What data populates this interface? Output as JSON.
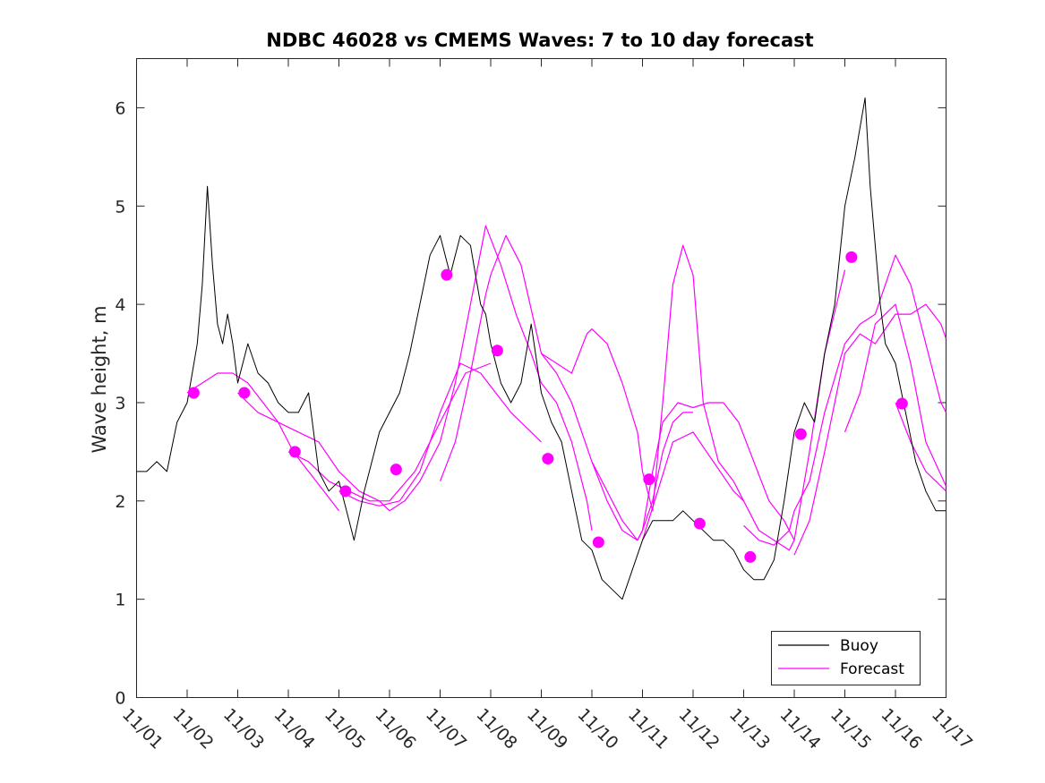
{
  "chart_data": {
    "type": "line",
    "title": "NDBC 46028 vs CMEMS Waves: 7 to 10 day forecast",
    "xlabel": "",
    "ylabel": "Wave height, m",
    "xlim": [
      0,
      16
    ],
    "ylim": [
      0,
      6.5
    ],
    "x_tick_values": [
      0,
      1,
      2,
      3,
      4,
      5,
      6,
      7,
      8,
      9,
      10,
      11,
      12,
      13,
      14,
      15,
      16
    ],
    "x_tick_labels": [
      "11/01",
      "11/02",
      "11/03",
      "11/04",
      "11/05",
      "11/06",
      "11/07",
      "11/08",
      "11/09",
      "11/10",
      "11/11",
      "11/12",
      "11/13",
      "11/14",
      "11/15",
      "11/16",
      "11/17"
    ],
    "y_ticks": [
      0,
      1,
      2,
      3,
      4,
      5,
      6
    ],
    "y_tick_labels": [
      "0",
      "1",
      "2",
      "3",
      "4",
      "5",
      "6"
    ],
    "grid": false,
    "legend_position": "bottom-right",
    "colors": {
      "buoy": "#000000",
      "forecast": "#ff00ff",
      "axis": "#262626"
    },
    "series": [
      {
        "name": "Buoy",
        "kind": "line",
        "x": [
          0,
          0.2,
          0.4,
          0.6,
          0.8,
          1.0,
          1.1,
          1.2,
          1.3,
          1.4,
          1.5,
          1.6,
          1.7,
          1.8,
          1.9,
          2.0,
          2.2,
          2.4,
          2.6,
          2.8,
          3.0,
          3.2,
          3.4,
          3.6,
          3.8,
          4.0,
          4.2,
          4.3,
          4.5,
          4.7,
          4.8,
          5.0,
          5.2,
          5.4,
          5.6,
          5.8,
          6.0,
          6.2,
          6.4,
          6.6,
          6.8,
          6.9,
          7.0,
          7.2,
          7.4,
          7.6,
          7.8,
          8.0,
          8.2,
          8.4,
          8.6,
          8.8,
          9.0,
          9.2,
          9.4,
          9.6,
          9.8,
          10.0,
          10.2,
          10.4,
          10.6,
          10.8,
          11.0,
          11.2,
          11.4,
          11.6,
          11.8,
          12.0,
          12.2,
          12.4,
          12.6,
          12.8,
          13.0,
          13.2,
          13.4,
          13.6,
          13.8,
          14.0,
          14.2,
          14.4,
          14.5,
          14.6,
          14.7,
          14.8,
          14.9,
          15.0,
          15.2,
          15.4,
          15.6,
          15.8,
          16.0
        ],
        "y": [
          2.3,
          2.3,
          2.4,
          2.3,
          2.8,
          3.0,
          3.3,
          3.6,
          4.2,
          5.2,
          4.4,
          3.8,
          3.6,
          3.9,
          3.6,
          3.2,
          3.6,
          3.3,
          3.2,
          3.0,
          2.9,
          2.9,
          3.1,
          2.3,
          2.1,
          2.2,
          1.8,
          1.6,
          2.1,
          2.5,
          2.7,
          2.9,
          3.1,
          3.5,
          4.0,
          4.5,
          4.7,
          4.3,
          4.7,
          4.6,
          4.0,
          3.9,
          3.6,
          3.2,
          3.0,
          3.2,
          3.8,
          3.1,
          2.8,
          2.6,
          2.1,
          1.6,
          1.5,
          1.2,
          1.1,
          1.0,
          1.3,
          1.6,
          1.8,
          1.8,
          1.8,
          1.9,
          1.8,
          1.7,
          1.6,
          1.6,
          1.5,
          1.3,
          1.2,
          1.2,
          1.4,
          2.0,
          2.7,
          3.0,
          2.8,
          3.5,
          4.0,
          5.0,
          5.5,
          6.1,
          5.2,
          4.6,
          4.0,
          3.6,
          3.5,
          3.4,
          2.9,
          2.4,
          2.1,
          1.9,
          1.9
        ]
      },
      {
        "name": "Forecast",
        "kind": "line",
        "x": [
          1.0,
          1.3,
          1.6,
          1.9,
          2.2,
          2.5,
          2.8,
          3.1,
          3.4,
          3.7,
          4.0
        ],
        "y": [
          3.1,
          3.2,
          3.3,
          3.3,
          3.2,
          3.0,
          2.8,
          2.5,
          2.3,
          2.1,
          1.9
        ]
      },
      {
        "name": "Forecast",
        "kind": "line",
        "x": [
          2.0,
          2.4,
          2.8,
          3.2,
          3.6,
          4.0,
          4.4,
          4.8,
          5.0
        ],
        "y": [
          3.1,
          2.9,
          2.8,
          2.7,
          2.6,
          2.3,
          2.1,
          2.0,
          1.9
        ]
      },
      {
        "name": "Forecast",
        "kind": "line",
        "x": [
          3.0,
          3.4,
          3.8,
          4.2,
          4.6,
          5.0,
          5.5,
          6.0,
          6.5,
          7.0
        ],
        "y": [
          2.5,
          2.4,
          2.2,
          2.1,
          2.0,
          2.0,
          2.3,
          2.8,
          3.3,
          3.4
        ]
      },
      {
        "name": "Forecast",
        "kind": "line",
        "x": [
          4.0,
          4.4,
          4.8,
          5.2,
          5.6,
          6.0,
          6.4,
          6.8,
          7.1,
          7.4,
          7.8,
          8.0
        ],
        "y": [
          2.1,
          2.0,
          1.95,
          2.0,
          2.3,
          2.9,
          3.4,
          3.3,
          3.1,
          2.9,
          2.7,
          2.6
        ]
      },
      {
        "name": "Forecast",
        "kind": "line",
        "x": [
          5.0,
          5.3,
          5.6,
          6.0,
          6.3,
          6.6,
          6.9,
          7.2,
          7.5,
          7.8,
          8.0,
          8.3,
          8.6,
          8.9,
          9.0
        ],
        "y": [
          1.9,
          2.0,
          2.2,
          2.6,
          3.2,
          4.0,
          4.8,
          4.4,
          3.9,
          3.5,
          3.2,
          3.0,
          2.6,
          2.0,
          1.7
        ]
      },
      {
        "name": "Forecast",
        "kind": "line",
        "x": [
          6.0,
          6.3,
          6.6,
          6.9,
          7.0,
          7.3,
          7.6,
          8.0,
          8.3,
          8.6,
          9.0,
          9.3,
          9.6,
          9.9,
          10.0,
          10.2,
          10.4,
          10.6,
          10.8,
          11.0
        ],
        "y": [
          2.2,
          2.6,
          3.3,
          4.1,
          4.3,
          4.7,
          4.4,
          3.5,
          3.3,
          3.0,
          2.4,
          2.0,
          1.7,
          1.6,
          1.7,
          2.0,
          2.5,
          2.8,
          2.9,
          2.9
        ]
      },
      {
        "name": "Forecast",
        "kind": "line",
        "x": [
          8.0,
          8.3,
          8.6,
          8.9,
          9.0,
          9.3,
          9.6,
          9.9,
          10.0,
          10.2,
          10.4,
          10.6,
          10.8,
          11.0,
          11.2,
          11.5,
          11.8,
          12.0
        ],
        "y": [
          3.5,
          3.4,
          3.3,
          3.7,
          3.75,
          3.6,
          3.2,
          2.7,
          2.3,
          1.9,
          3.0,
          4.2,
          4.6,
          4.3,
          3.0,
          2.4,
          2.2,
          2.0
        ]
      },
      {
        "name": "Forecast",
        "kind": "line",
        "x": [
          9.0,
          9.3,
          9.6,
          9.9,
          10.0,
          10.2,
          10.4,
          10.7,
          11.0,
          11.3,
          11.6,
          11.9,
          12.2,
          12.5,
          12.8,
          13.0
        ],
        "y": [
          2.4,
          2.1,
          1.8,
          1.6,
          1.7,
          2.3,
          2.8,
          3.0,
          2.95,
          3.0,
          3.0,
          2.8,
          2.4,
          2.0,
          1.8,
          1.6
        ]
      },
      {
        "name": "Forecast",
        "kind": "line",
        "x": [
          10.0,
          10.3,
          10.6,
          11.0,
          11.4,
          11.8,
          12.0,
          12.3,
          12.6,
          12.9,
          13.0,
          13.3,
          13.6,
          14.0
        ],
        "y": [
          1.6,
          2.1,
          2.6,
          2.7,
          2.4,
          2.1,
          2.0,
          1.7,
          1.6,
          1.5,
          1.6,
          2.5,
          3.5,
          4.35
        ]
      },
      {
        "name": "Forecast",
        "kind": "line",
        "x": [
          12.0,
          12.3,
          12.6,
          12.9,
          13.0,
          13.3,
          13.6,
          14.0,
          14.3,
          14.6,
          15.0,
          15.3,
          15.6,
          15.9,
          16.0
        ],
        "y": [
          1.75,
          1.6,
          1.55,
          1.7,
          1.9,
          2.2,
          2.9,
          3.6,
          3.8,
          3.9,
          4.5,
          4.2,
          3.6,
          3.0,
          2.9
        ]
      },
      {
        "name": "Forecast",
        "kind": "line",
        "x": [
          13.0,
          13.3,
          13.6,
          14.0,
          14.3,
          14.6,
          15.0,
          15.3,
          15.6,
          15.9,
          16.0
        ],
        "y": [
          1.45,
          1.8,
          2.5,
          3.5,
          3.7,
          3.6,
          3.9,
          3.9,
          4.0,
          3.8,
          3.65
        ]
      },
      {
        "name": "Forecast",
        "kind": "line",
        "x": [
          14.0,
          14.3,
          14.6,
          15.0,
          15.3,
          15.6,
          16.0
        ],
        "y": [
          2.7,
          3.1,
          3.8,
          4.0,
          3.4,
          2.6,
          2.15
        ]
      },
      {
        "name": "Forecast",
        "kind": "line",
        "x": [
          15.0,
          15.3,
          15.6,
          16.0
        ],
        "y": [
          3.0,
          2.6,
          2.3,
          2.1
        ]
      },
      {
        "name": "Forecast",
        "kind": "markers",
        "x": [
          1.13,
          2.13,
          3.13,
          4.13,
          5.13,
          6.13,
          7.13,
          8.13,
          9.13,
          10.13,
          11.13,
          12.13,
          13.13,
          14.13,
          15.13
        ],
        "y": [
          3.1,
          3.1,
          2.5,
          2.1,
          2.32,
          4.3,
          3.53,
          2.43,
          1.58,
          2.22,
          1.77,
          1.43,
          2.68,
          4.48,
          2.99
        ]
      }
    ],
    "legend": [
      {
        "label": "Buoy",
        "color": "#000000"
      },
      {
        "label": "Forecast",
        "color": "#ff00ff"
      }
    ]
  }
}
